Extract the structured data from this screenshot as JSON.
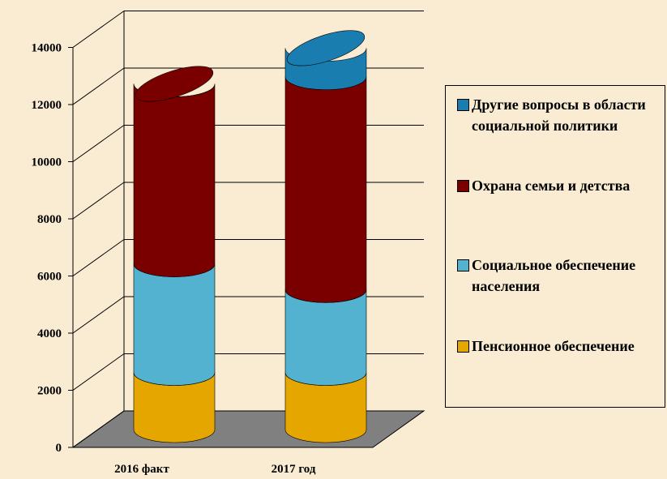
{
  "chart_data": {
    "type": "bar3d",
    "categories": [
      "2016 факт",
      "2017 год"
    ],
    "series": [
      {
        "name": "Пенсионное обеспечение",
        "color": "#e6a600",
        "values": [
          2000,
          2000
        ]
      },
      {
        "name": "Социальное обеспечение населения",
        "color": "#52b2cf",
        "values": [
          3800,
          2900
        ]
      },
      {
        "name": "Охрана семьи и детства",
        "color": "#7a0000",
        "values": [
          6300,
          7450
        ]
      },
      {
        "name": "Другие вопросы в области социальной политики",
        "color": "#1a7db0",
        "values": [
          0,
          1000
        ]
      }
    ],
    "ylim": [
      0,
      14000
    ],
    "yticks": [
      0,
      2000,
      4000,
      6000,
      8000,
      10000,
      12000,
      14000
    ],
    "grid": true
  }
}
